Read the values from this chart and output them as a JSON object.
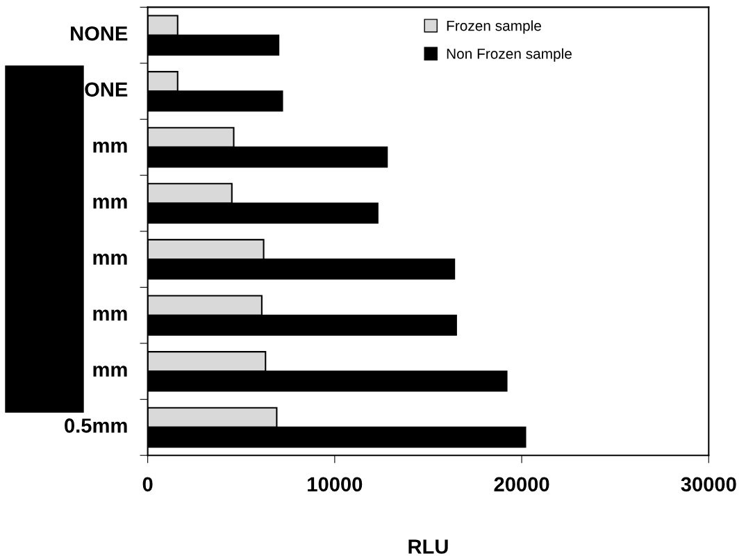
{
  "chart_data": {
    "type": "bar",
    "orientation": "horizontal",
    "categories": [
      "NONE",
      "ONE",
      "mm",
      "mm",
      "mm",
      "mm",
      "mm",
      "0.5mm"
    ],
    "series": [
      {
        "name": "Frozen sample",
        "color": "#d9d9d9",
        "values": [
          1600,
          1600,
          4600,
          4500,
          6200,
          6100,
          6300,
          6900
        ]
      },
      {
        "name": "Non Frozen sample",
        "color": "#000000",
        "values": [
          7000,
          7200,
          12800,
          12300,
          16400,
          16500,
          19200,
          20200
        ]
      }
    ],
    "xlabel": "RLU",
    "xlim": [
      0,
      30000
    ],
    "xticks": [
      0,
      10000,
      20000,
      30000
    ],
    "grid": false,
    "legend": "top right"
  }
}
